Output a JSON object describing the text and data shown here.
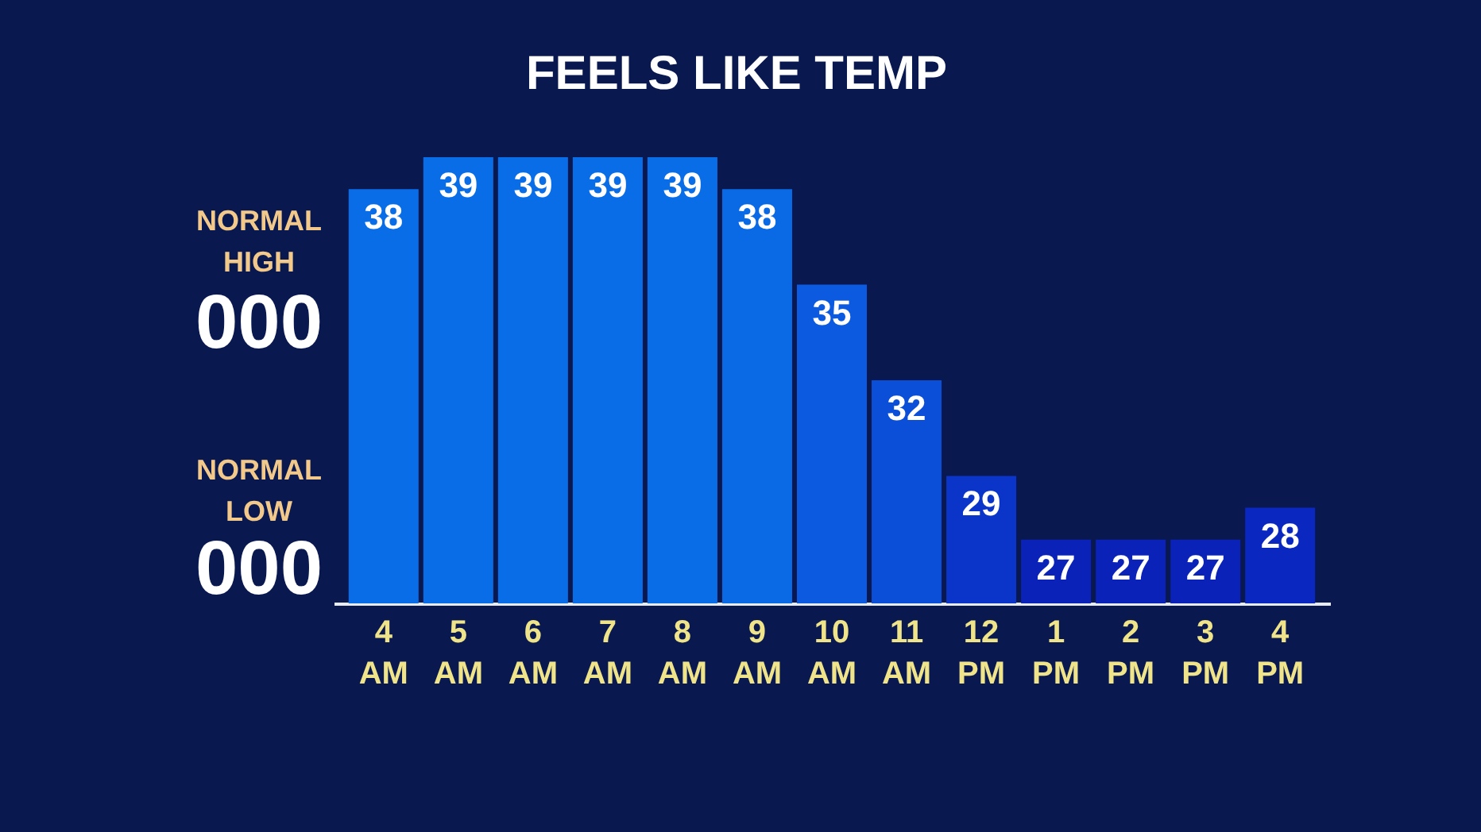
{
  "chart_data": {
    "type": "bar",
    "title": "FEELS LIKE TEMP",
    "categories": [
      "4 AM",
      "5 AM",
      "6 AM",
      "7 AM",
      "8 AM",
      "9 AM",
      "10 AM",
      "11 AM",
      "12 PM",
      "1 PM",
      "2 PM",
      "3 PM",
      "4 PM"
    ],
    "values": [
      38,
      39,
      39,
      39,
      39,
      38,
      35,
      32,
      29,
      27,
      27,
      27,
      28
    ],
    "colors": [
      "#0a6de8",
      "#0a6de8",
      "#0a6de8",
      "#0a6de8",
      "#0a6de8",
      "#0a6ae6",
      "#0b5ae0",
      "#0b4fd8",
      "#0a35c8",
      "#0a22b8",
      "#0a22b8",
      "#0a22b8",
      "#0a28c0"
    ],
    "ylim": [
      25,
      39
    ],
    "data_labels": true,
    "annotations": [
      "NORMAL HIGH",
      "000",
      "NORMAL LOW",
      "000"
    ]
  }
}
